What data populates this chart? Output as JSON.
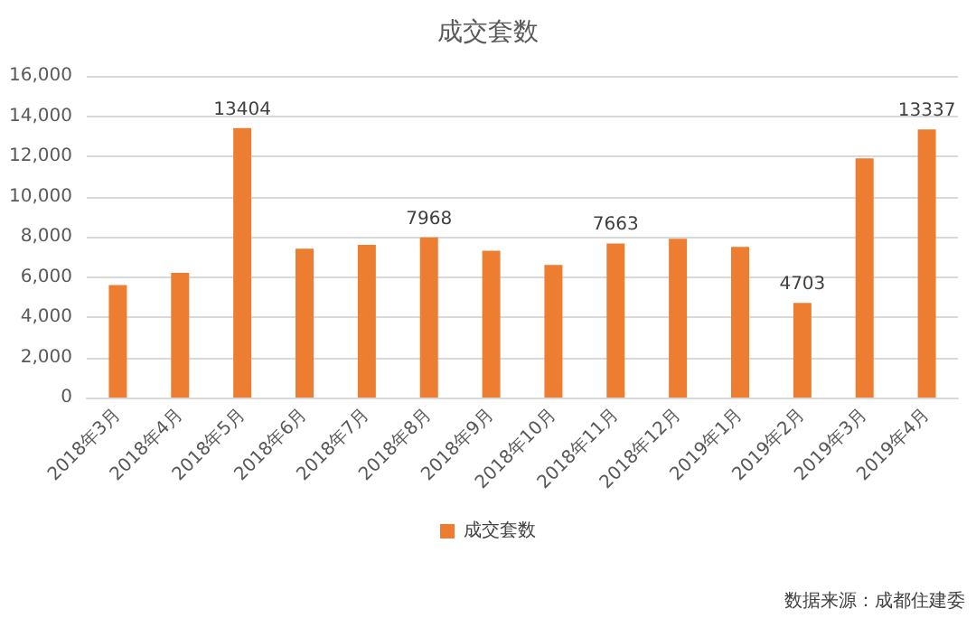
{
  "chart_data": {
    "type": "bar",
    "title": "成交套数",
    "categories": [
      "2018年3月",
      "2018年4月",
      "2018年5月",
      "2018年6月",
      "2018年7月",
      "2018年8月",
      "2018年9月",
      "2018年10月",
      "2018年11月",
      "2018年12月",
      "2019年1月",
      "2019年2月",
      "2019年3月",
      "2019年4月"
    ],
    "series": [
      {
        "name": "成交套数",
        "color": "#ed7d31",
        "values": [
          5600,
          6200,
          13404,
          7400,
          7600,
          7968,
          7300,
          6600,
          7663,
          7900,
          7500,
          4703,
          11900,
          13337
        ],
        "value_labels": [
          null,
          null,
          "13404",
          null,
          null,
          "7968",
          null,
          null,
          "7663",
          null,
          null,
          "4703",
          null,
          "13337"
        ]
      }
    ],
    "ylim": [
      0,
      16000
    ],
    "yticks": [
      {
        "value": 0,
        "label": "0"
      },
      {
        "value": 2000,
        "label": "2,000"
      },
      {
        "value": 4000,
        "label": "4,000"
      },
      {
        "value": 6000,
        "label": "6,000"
      },
      {
        "value": 8000,
        "label": "8,000"
      },
      {
        "value": 10000,
        "label": "10,000"
      },
      {
        "value": 12000,
        "label": "12,000"
      },
      {
        "value": 14000,
        "label": "14,000"
      },
      {
        "value": 16000,
        "label": "16,000"
      }
    ],
    "grid": "y",
    "legend": "bottom",
    "annotations": [
      "数据来源：成都住建委"
    ]
  }
}
